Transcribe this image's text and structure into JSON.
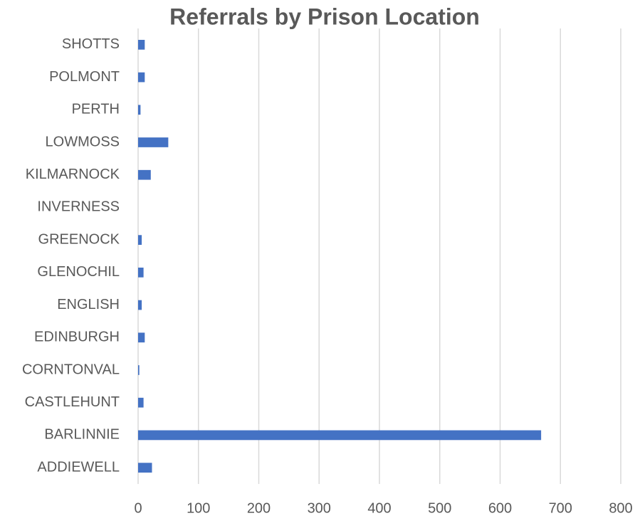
{
  "chart_data": {
    "type": "barh",
    "title": "Referrals by Prison Location",
    "categories": [
      "SHOTTS",
      "POLMONT",
      "PERTH",
      "LOWMOSS",
      "KILMARNOCK",
      "INVERNESS",
      "GREENOCK",
      "GLENOCHIL",
      "ENGLISH",
      "EDINBURGH",
      "CORNTONVAL",
      "CASTLEHUNT",
      "BARLINNIE",
      "ADDIEWELL"
    ],
    "values": [
      11,
      11,
      4,
      50,
      21,
      0,
      6,
      9,
      6,
      11,
      2,
      9,
      668,
      23
    ],
    "color": "#4472c4",
    "xlim": [
      0,
      800
    ],
    "xticks": [
      0,
      100,
      200,
      300,
      400,
      500,
      600,
      700,
      800
    ],
    "grid": true
  }
}
